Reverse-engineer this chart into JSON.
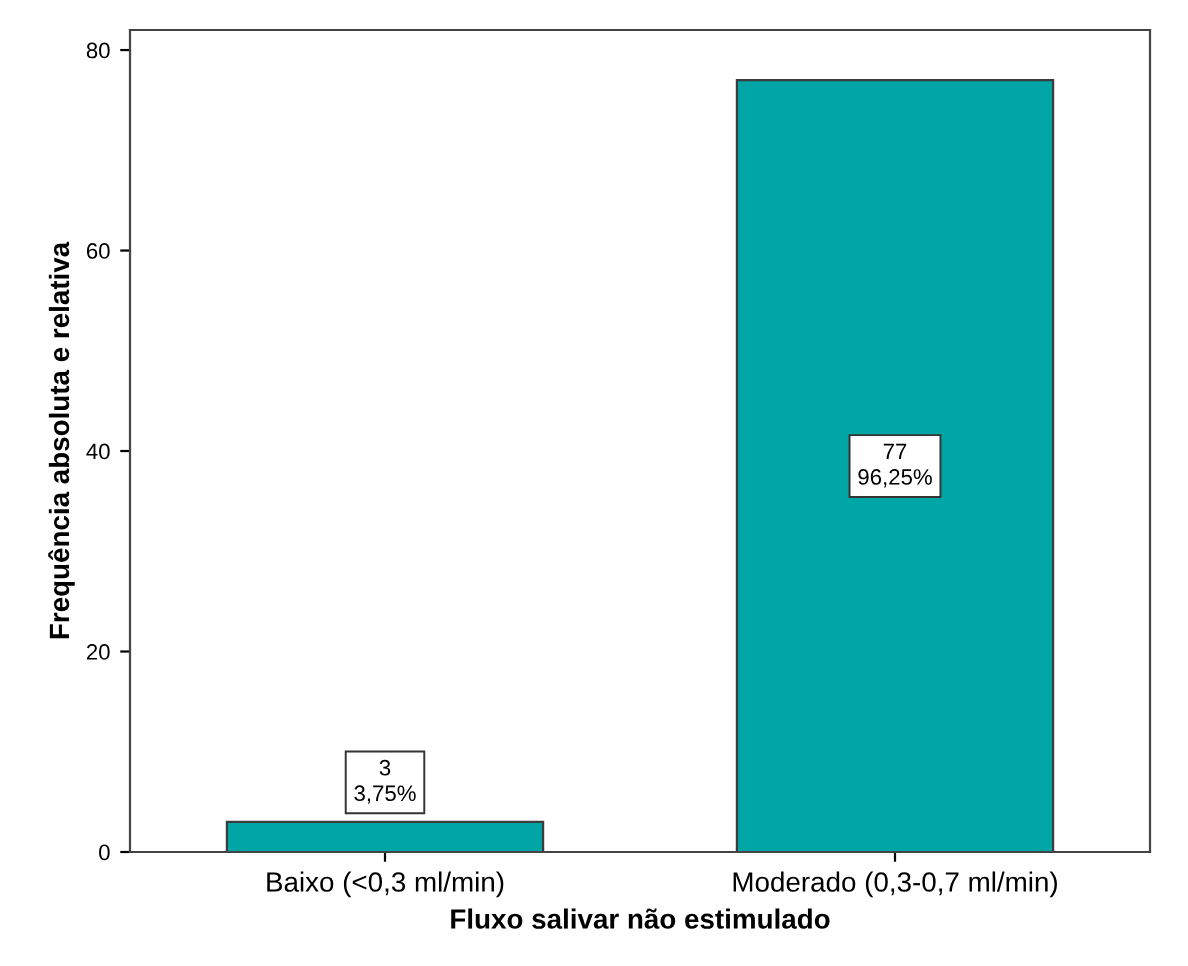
{
  "chart_data": {
    "type": "bar",
    "xlabel": "Fluxo salivar não estimulado",
    "ylabel": "Frequência absoluta e relativa",
    "categories": [
      "Baixo (<0,3 ml/min)",
      "Moderado (0,3-0,7 ml/min)"
    ],
    "values": [
      3,
      77
    ],
    "value_labels": [
      "3\n3,75%",
      "77\n96,25%"
    ],
    "color": "#00a5a5",
    "ylim": [
      0,
      82
    ],
    "yticks": [
      0,
      20,
      40,
      60,
      80
    ],
    "grid": false,
    "legend": false
  }
}
